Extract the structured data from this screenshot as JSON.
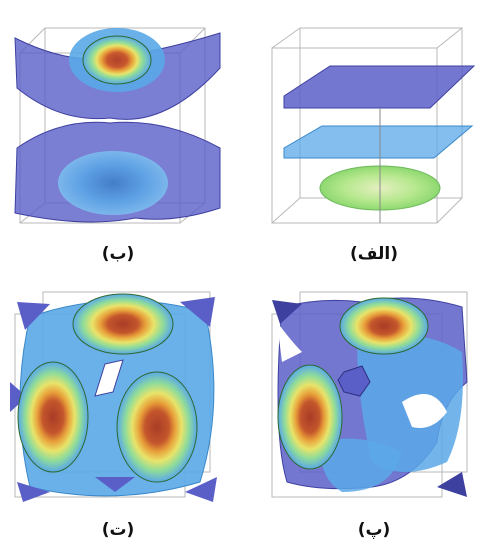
{
  "panels": [
    {
      "id": "b",
      "label": "(ب)"
    },
    {
      "id": "alef",
      "label": "(الف)"
    },
    {
      "id": "t",
      "label": "(ت)"
    },
    {
      "id": "p",
      "label": "(پ)"
    }
  ],
  "colors": {
    "surface_dark_blue": "#5a5fc8",
    "surface_light_blue": "#5aa8e8",
    "surface_green": "#9ee08a",
    "surface_yellow": "#e8e86a",
    "surface_orange": "#e8923a",
    "surface_red": "#b8442a",
    "frame_line": "#aaaaaa"
  }
}
